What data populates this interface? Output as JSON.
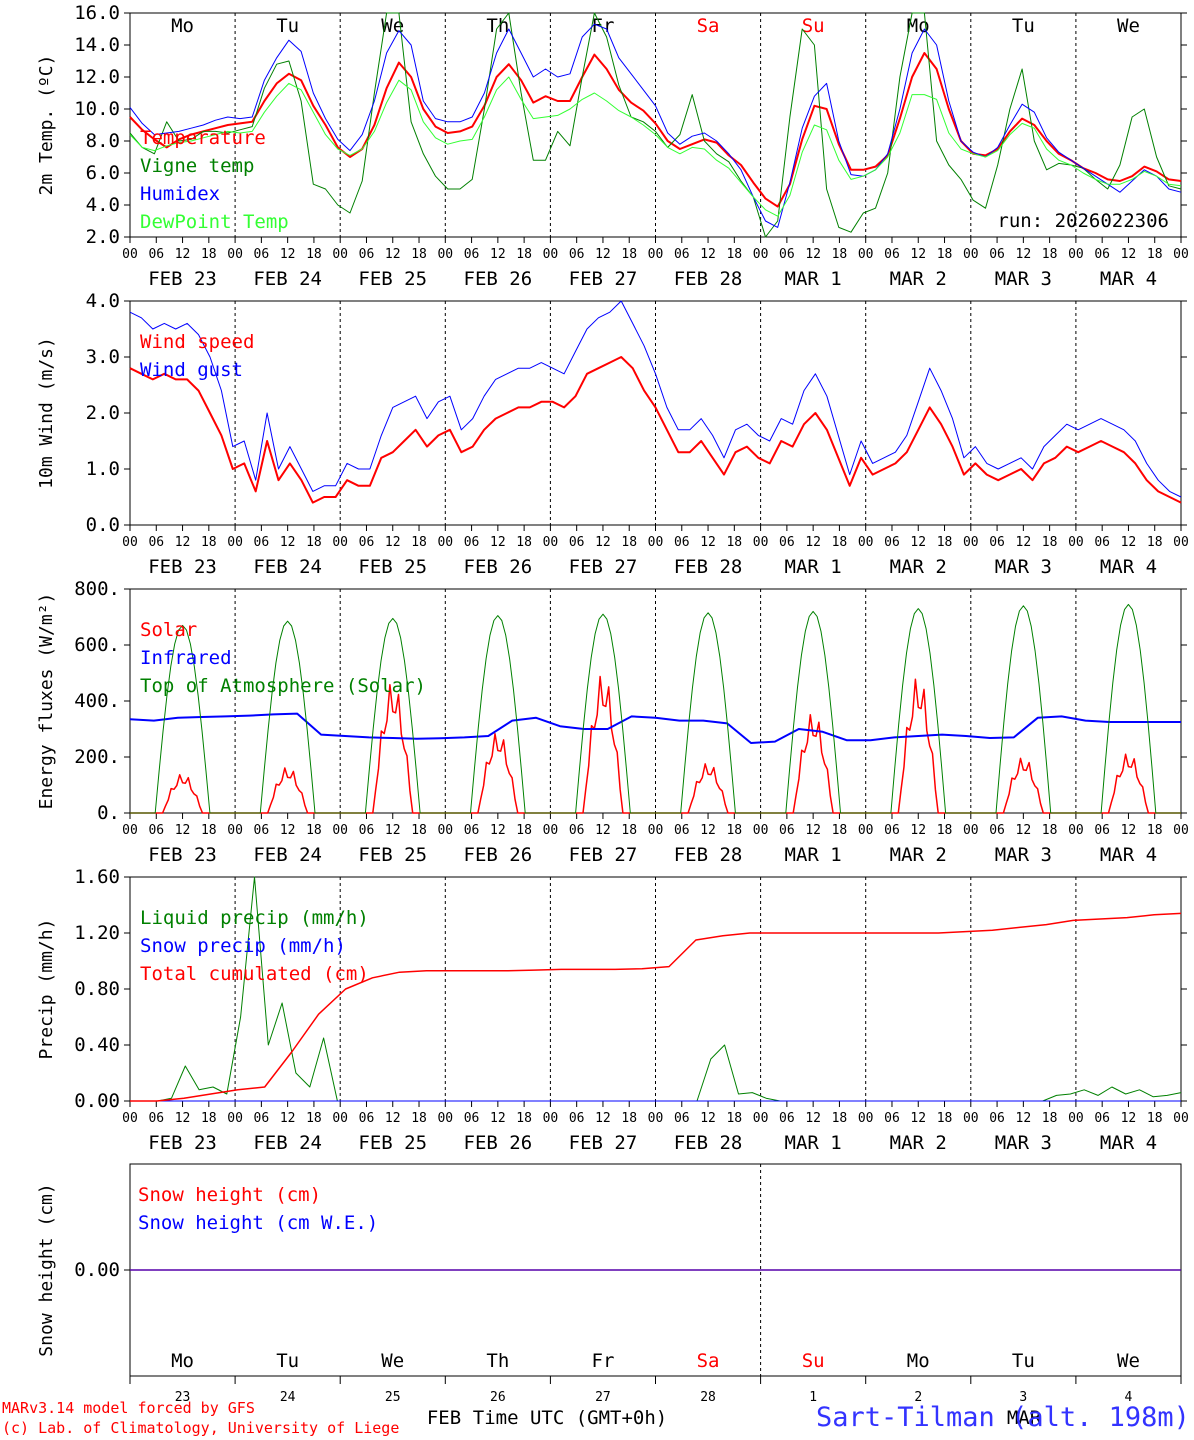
{
  "chart_data": [
    {
      "type": "line",
      "id": "temp",
      "ylabel": "2m Temp. (ºC)",
      "ylim": [
        2.0,
        16.0
      ],
      "yticks": [
        "2.0",
        "4.0",
        "6.0",
        "8.0",
        "10.0",
        "12.0",
        "14.0",
        "16.0"
      ],
      "run_label": "run: 2026022306",
      "weekday_labels": [
        "Mo",
        "Tu",
        "We",
        "Th",
        "Fr",
        "Sa",
        "Su",
        "Mo",
        "Tu",
        "We"
      ],
      "series": [
        {
          "name": "Temperature",
          "color": "#ff0000",
          "width": 2,
          "values": [
            9.5,
            8.7,
            8.1,
            7.6,
            8.1,
            8.4,
            8.6,
            8.8,
            9.0,
            9.1,
            9.2,
            10.5,
            11.6,
            12.2,
            11.8,
            10.2,
            9.0,
            7.6,
            7.0,
            7.5,
            9.0,
            11.3,
            12.9,
            12.0,
            10.0,
            8.9,
            8.5,
            8.6,
            8.9,
            10.2,
            12.0,
            12.8,
            11.8,
            10.4,
            10.8,
            10.5,
            10.5,
            12.0,
            13.4,
            12.5,
            11.2,
            10.4,
            9.9,
            9.1,
            8.0,
            7.5,
            7.8,
            8.1,
            7.9,
            7.1,
            6.5,
            5.4,
            4.4,
            3.9,
            5.3,
            8.1,
            10.2,
            10.0,
            7.8,
            6.2,
            6.2,
            6.4,
            7.1,
            9.4,
            12.0,
            13.5,
            12.5,
            10.0,
            8.0,
            7.2,
            7.1,
            7.5,
            8.6,
            9.4,
            9.0,
            8.0,
            7.2,
            6.8,
            6.3,
            6.0,
            5.6,
            5.5,
            5.8,
            6.4,
            6.1,
            5.6,
            5.5
          ]
        },
        {
          "name": "Vigne temp",
          "color": "#008000",
          "width": 1,
          "values": [
            8.5,
            7.6,
            7.2,
            9.2,
            8.0,
            8.1,
            8.6,
            8.6,
            8.5,
            8.7,
            8.9,
            11.3,
            12.8,
            13.0,
            10.5,
            5.3,
            5.0,
            4.0,
            3.5,
            5.5,
            11.0,
            16.0,
            16.0,
            9.2,
            7.2,
            5.8,
            5.0,
            5.0,
            5.6,
            10.0,
            15.0,
            16.0,
            11.0,
            6.8,
            6.8,
            8.6,
            7.7,
            12.0,
            16.0,
            14.5,
            11.5,
            9.5,
            9.2,
            8.6,
            7.6,
            8.4,
            10.9,
            8.0,
            7.2,
            6.7,
            5.5,
            4.5,
            2.0,
            3.0,
            9.5,
            15.0,
            14.0,
            5.0,
            2.6,
            2.3,
            3.5,
            3.8,
            6.0,
            12.0,
            16.0,
            16.0,
            8.0,
            6.5,
            5.6,
            4.3,
            3.8,
            6.5,
            10.0,
            12.5,
            8.0,
            6.2,
            6.6,
            6.5,
            6.3,
            5.6,
            5.0,
            6.5,
            9.5,
            10.0,
            7.0,
            5.2,
            5.0
          ]
        },
        {
          "name": "Humidex",
          "color": "#0000ff",
          "width": 1,
          "values": [
            10.1,
            9.1,
            8.4,
            8.5,
            8.6,
            8.8,
            9.0,
            9.3,
            9.5,
            9.4,
            9.5,
            11.8,
            13.2,
            14.3,
            13.6,
            11.0,
            9.4,
            8.1,
            7.4,
            8.4,
            10.5,
            13.5,
            14.9,
            14.0,
            10.5,
            9.4,
            9.2,
            9.2,
            9.5,
            11.0,
            13.5,
            15.0,
            13.5,
            12.0,
            12.5,
            12.0,
            12.2,
            14.5,
            15.3,
            15.0,
            13.2,
            12.2,
            11.2,
            10.2,
            8.5,
            7.8,
            8.3,
            8.5,
            8.0,
            7.2,
            6.2,
            4.5,
            3.0,
            2.6,
            5.4,
            8.8,
            10.8,
            11.6,
            8.0,
            5.9,
            5.8,
            6.2,
            7.2,
            10.0,
            13.5,
            15.0,
            14.0,
            10.5,
            8.0,
            7.3,
            7.0,
            7.6,
            9.0,
            10.3,
            9.8,
            8.2,
            7.3,
            6.8,
            6.3,
            5.8,
            5.3,
            4.8,
            5.5,
            6.2,
            5.8,
            5.0,
            4.8
          ]
        },
        {
          "name": "DewPoint Temp",
          "color": "#33ff33",
          "width": 1,
          "values": [
            8.4,
            7.6,
            7.4,
            7.7,
            7.9,
            8.0,
            8.2,
            8.4,
            8.6,
            8.5,
            8.6,
            9.8,
            10.8,
            11.6,
            11.2,
            9.8,
            8.4,
            7.5,
            7.1,
            7.5,
            8.6,
            10.4,
            11.8,
            11.2,
            9.2,
            8.2,
            7.8,
            8.0,
            8.1,
            9.5,
            11.2,
            12.0,
            10.6,
            9.4,
            9.5,
            9.6,
            10.0,
            10.6,
            11.0,
            10.5,
            9.9,
            9.5,
            9.0,
            8.4,
            7.6,
            7.2,
            7.6,
            7.5,
            6.8,
            6.3,
            5.4,
            4.5,
            3.7,
            3.3,
            4.6,
            7.3,
            9.0,
            8.7,
            6.8,
            5.6,
            5.8,
            6.2,
            7.0,
            8.5,
            10.9,
            10.9,
            10.6,
            8.5,
            7.5,
            7.2,
            7.0,
            7.4,
            8.4,
            9.1,
            8.8,
            7.5,
            6.8,
            6.5,
            6.0,
            5.6,
            5.3,
            5.3,
            5.6,
            6.1,
            5.8,
            5.3,
            5.2
          ]
        }
      ]
    },
    {
      "type": "line",
      "id": "wind",
      "ylabel": "10m Wind (m/s)",
      "ylim": [
        0.0,
        4.0
      ],
      "yticks": [
        "0.0",
        "1.0",
        "2.0",
        "3.0",
        "4.0"
      ],
      "series": [
        {
          "name": "Wind speed",
          "color": "#ff0000",
          "width": 2,
          "values": [
            2.8,
            2.7,
            2.6,
            2.7,
            2.6,
            2.6,
            2.4,
            2.0,
            1.6,
            1.0,
            1.1,
            0.6,
            1.5,
            0.8,
            1.1,
            0.8,
            0.4,
            0.5,
            0.5,
            0.8,
            0.7,
            0.7,
            1.2,
            1.3,
            1.5,
            1.7,
            1.4,
            1.6,
            1.7,
            1.3,
            1.4,
            1.7,
            1.9,
            2.0,
            2.1,
            2.1,
            2.2,
            2.2,
            2.1,
            2.3,
            2.7,
            2.8,
            2.9,
            3.0,
            2.8,
            2.4,
            2.1,
            1.7,
            1.3,
            1.3,
            1.5,
            1.2,
            0.9,
            1.3,
            1.4,
            1.2,
            1.1,
            1.5,
            1.4,
            1.8,
            2.0,
            1.7,
            1.2,
            0.7,
            1.2,
            0.9,
            1.0,
            1.1,
            1.3,
            1.7,
            2.1,
            1.8,
            1.4,
            0.9,
            1.1,
            0.9,
            0.8,
            0.9,
            1.0,
            0.8,
            1.1,
            1.2,
            1.4,
            1.3,
            1.4,
            1.5,
            1.4,
            1.3,
            1.1,
            0.8,
            0.6,
            0.5,
            0.4
          ]
        },
        {
          "name": "Wind gust",
          "color": "#0000ff",
          "width": 1,
          "values": [
            3.8,
            3.7,
            3.5,
            3.6,
            3.5,
            3.6,
            3.4,
            3.0,
            2.4,
            1.4,
            1.5,
            0.8,
            2.0,
            1.0,
            1.4,
            1.0,
            0.6,
            0.7,
            0.7,
            1.1,
            1.0,
            1.0,
            1.6,
            2.1,
            2.2,
            2.3,
            1.9,
            2.2,
            2.3,
            1.7,
            1.9,
            2.3,
            2.6,
            2.7,
            2.8,
            2.8,
            2.9,
            2.8,
            2.7,
            3.1,
            3.5,
            3.7,
            3.8,
            4.0,
            3.6,
            3.2,
            2.7,
            2.1,
            1.7,
            1.7,
            1.9,
            1.6,
            1.2,
            1.7,
            1.8,
            1.6,
            1.5,
            1.9,
            1.8,
            2.4,
            2.7,
            2.3,
            1.6,
            0.9,
            1.5,
            1.1,
            1.2,
            1.3,
            1.6,
            2.2,
            2.8,
            2.4,
            1.9,
            1.2,
            1.4,
            1.1,
            1.0,
            1.1,
            1.2,
            1.0,
            1.4,
            1.6,
            1.8,
            1.7,
            1.8,
            1.9,
            1.8,
            1.7,
            1.5,
            1.1,
            0.8,
            0.6,
            0.5
          ]
        }
      ]
    },
    {
      "type": "line",
      "id": "energy",
      "ylabel": "Energy fluxes (W/m²)",
      "ylim": [
        0,
        800
      ],
      "yticks": [
        "0.",
        "200.",
        "400.",
        "600.",
        "800."
      ],
      "series": [
        {
          "name": "Solar",
          "color": "#ff0000",
          "width": 1.5,
          "peaks": [
            140,
            165,
            470,
            290,
            500,
            180,
            360,
            490,
            200,
            215
          ]
        },
        {
          "name": "Infrared",
          "color": "#0000ff",
          "width": 2,
          "values": [
            335,
            330,
            340,
            343,
            345,
            348,
            352,
            355,
            280,
            275,
            270,
            268,
            265,
            267,
            270,
            275,
            330,
            340,
            310,
            300,
            300,
            345,
            340,
            330,
            330,
            320,
            250,
            255,
            300,
            290,
            260,
            260,
            270,
            275,
            280,
            275,
            268,
            270,
            340,
            345,
            330,
            325,
            325,
            325,
            325
          ]
        },
        {
          "name": "Top of Atmosphere (Solar)",
          "color": "#008000",
          "width": 1,
          "peaks": [
            670,
            685,
            695,
            705,
            710,
            715,
            720,
            730,
            740,
            745
          ]
        }
      ]
    },
    {
      "type": "line",
      "id": "precip",
      "ylabel": "Precip (mm/h)",
      "ylim": [
        0.0,
        1.6
      ],
      "yticks": [
        "0.00",
        "0.40",
        "0.80",
        "1.20",
        "1.60"
      ],
      "series": [
        {
          "name": "Liquid precip (mm/h)",
          "color": "#008000",
          "width": 1,
          "values": [
            0,
            0,
            0,
            0.02,
            0.25,
            0.08,
            0.1,
            0.05,
            0.6,
            1.6,
            0.4,
            0.7,
            0.2,
            0.1,
            0.45,
            0,
            0,
            0,
            0,
            0,
            0,
            0,
            0,
            0,
            0,
            0,
            0,
            0,
            0,
            0,
            0,
            0,
            0,
            0,
            0,
            0,
            0,
            0,
            0,
            0,
            0,
            0,
            0.3,
            0.4,
            0.05,
            0.06,
            0.02,
            0,
            0,
            0,
            0,
            0,
            0,
            0,
            0,
            0,
            0,
            0,
            0,
            0,
            0,
            0,
            0,
            0,
            0,
            0,
            0,
            0.04,
            0.05,
            0.08,
            0.04,
            0.1,
            0.05,
            0.08,
            0.03,
            0.04,
            0.06
          ]
        },
        {
          "name": "Snow precip (mm/h)",
          "color": "#0000ff",
          "width": 1,
          "values": [
            0,
            0
          ]
        },
        {
          "name": "Total cumulated (cm)",
          "color": "#ff0000",
          "width": 1.5,
          "values": [
            0,
            0,
            0.02,
            0.05,
            0.08,
            0.1,
            0.35,
            0.62,
            0.8,
            0.88,
            0.92,
            0.93,
            0.93,
            0.93,
            0.93,
            0.935,
            0.94,
            0.94,
            0.94,
            0.945,
            0.96,
            1.15,
            1.18,
            1.2,
            1.2,
            1.2,
            1.2,
            1.2,
            1.2,
            1.2,
            1.2,
            1.21,
            1.22,
            1.24,
            1.26,
            1.29,
            1.3,
            1.31,
            1.33,
            1.34
          ]
        }
      ]
    },
    {
      "type": "line",
      "id": "snow",
      "ylabel": "Snow height (cm)",
      "ylim": [
        -1.0,
        1.0
      ],
      "yticks": [
        "0.00"
      ],
      "series": [
        {
          "name": "Snow height (cm)",
          "color": "#ff0000",
          "width": 1.5,
          "values": [
            0,
            0
          ]
        },
        {
          "name": "Snow height (cm W.E.)",
          "color": "#0000ff",
          "width": 1,
          "values": [
            0,
            0
          ]
        }
      ],
      "weekday_labels": [
        "Mo",
        "Tu",
        "We",
        "Th",
        "Fr",
        "Sa",
        "Su",
        "Mo",
        "Tu",
        "We"
      ],
      "day_numbers": [
        "23",
        "24",
        "25",
        "26",
        "27",
        "28",
        "1",
        "2",
        "3",
        "4"
      ],
      "month_labels": [
        "FEB",
        "MAR"
      ]
    }
  ],
  "x_axis": {
    "hour_ticks": [
      "00",
      "06",
      "12",
      "18"
    ],
    "date_labels": [
      "FEB 23",
      "FEB 24",
      "FEB 25",
      "FEB 26",
      "FEB 27",
      "FEB 28",
      "MAR  1",
      "MAR  2",
      "MAR  3",
      "MAR  4"
    ],
    "xlabel": "Time UTC (GMT+0h)"
  },
  "colors": {
    "weekday": "#000000",
    "weekend": "#ff0000"
  },
  "weekend_indices": [
    5,
    6
  ],
  "footer": {
    "model_line": "MARv3.14 model forced by GFS",
    "lab_line": "(c) Lab. of Climatology, University of Liege",
    "station": "Sart-Tilman (alt. 198m)"
  }
}
